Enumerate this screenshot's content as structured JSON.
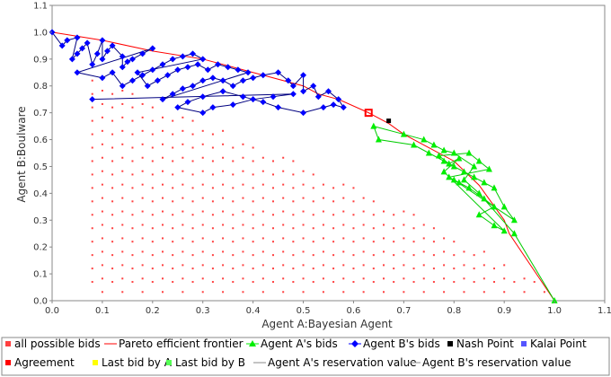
{
  "chart_data": {
    "type": "scatter",
    "xlabel": "Agent A:Bayesian Agent",
    "ylabel": "Agent B:Boulware",
    "xlim": [
      0.0,
      1.1
    ],
    "ylim": [
      0.0,
      1.1
    ],
    "xticks": [
      "0.0",
      "0.1",
      "0.2",
      "0.3",
      "0.4",
      "0.5",
      "0.6",
      "0.7",
      "0.8",
      "0.9",
      "1.0",
      "1.1"
    ],
    "yticks": [
      "0.0",
      "0.1",
      "0.2",
      "0.3",
      "0.4",
      "0.5",
      "0.6",
      "0.7",
      "0.8",
      "0.9",
      "1.0",
      "1.1"
    ],
    "grid": false,
    "legend_position": "bottom",
    "colors": {
      "possible_bids": "#ff4040",
      "pareto": "#ff0000",
      "agent_a": "#00ee00",
      "agent_b": "#0000ff",
      "nash": "#000000",
      "kalai": "#5555ff",
      "agreement": "#ff0000",
      "last_bid_a": "#ffff00",
      "last_bid_b": "#55ff55",
      "reservation": "#888888"
    },
    "legend": [
      {
        "label": "all possible bids",
        "marker": "square",
        "color": "#ff4040"
      },
      {
        "label": "Pareto efficient frontier",
        "marker": "line",
        "color": "#ff0000"
      },
      {
        "label": "Agent A's bids",
        "marker": "triangle",
        "color": "#00ee00"
      },
      {
        "label": "Agent B's bids",
        "marker": "diamond",
        "color": "#0000ff"
      },
      {
        "label": "Nash Point",
        "marker": "square",
        "color": "#000000"
      },
      {
        "label": "Kalai Point",
        "marker": "square",
        "color": "#5555ff"
      },
      {
        "label": "Agreement",
        "marker": "square",
        "color": "#ff0000"
      },
      {
        "label": "Last bid by A",
        "marker": "square",
        "color": "#ffff00"
      },
      {
        "label": "Last bid by B",
        "marker": "square",
        "color": "#55ff55"
      },
      {
        "label": "Agent A's reservation value",
        "marker": "line",
        "color": "#888888"
      },
      {
        "label": "Agent B's reservation value",
        "marker": "line",
        "color": "#888888"
      }
    ],
    "pareto": [
      [
        0.0,
        1.0
      ],
      [
        0.1,
        0.97
      ],
      [
        0.2,
        0.93
      ],
      [
        0.3,
        0.9
      ],
      [
        0.4,
        0.85
      ],
      [
        0.5,
        0.8
      ],
      [
        0.53,
        0.77
      ],
      [
        0.57,
        0.75
      ],
      [
        0.63,
        0.7
      ],
      [
        0.67,
        0.66
      ],
      [
        0.7,
        0.62
      ],
      [
        0.75,
        0.57
      ],
      [
        0.8,
        0.52
      ],
      [
        0.85,
        0.43
      ],
      [
        0.9,
        0.3
      ],
      [
        0.91,
        0.25
      ],
      [
        1.0,
        0.0
      ]
    ],
    "agent_b_bids": [
      [
        0.0,
        1.0
      ],
      [
        0.02,
        0.95
      ],
      [
        0.03,
        0.97
      ],
      [
        0.05,
        0.98
      ],
      [
        0.04,
        0.9
      ],
      [
        0.05,
        0.92
      ],
      [
        0.06,
        0.94
      ],
      [
        0.07,
        0.96
      ],
      [
        0.08,
        0.88
      ],
      [
        0.09,
        0.92
      ],
      [
        0.1,
        0.97
      ],
      [
        0.1,
        0.9
      ],
      [
        0.11,
        0.93
      ],
      [
        0.12,
        0.95
      ],
      [
        0.14,
        0.91
      ],
      [
        0.14,
        0.87
      ],
      [
        0.15,
        0.89
      ],
      [
        0.16,
        0.9
      ],
      [
        0.18,
        0.92
      ],
      [
        0.2,
        0.94
      ],
      [
        0.05,
        0.85
      ],
      [
        0.1,
        0.83
      ],
      [
        0.12,
        0.85
      ],
      [
        0.14,
        0.8
      ],
      [
        0.16,
        0.82
      ],
      [
        0.18,
        0.84
      ],
      [
        0.2,
        0.86
      ],
      [
        0.22,
        0.88
      ],
      [
        0.24,
        0.9
      ],
      [
        0.26,
        0.91
      ],
      [
        0.28,
        0.92
      ],
      [
        0.3,
        0.9
      ],
      [
        0.17,
        0.85
      ],
      [
        0.19,
        0.8
      ],
      [
        0.21,
        0.82
      ],
      [
        0.23,
        0.84
      ],
      [
        0.25,
        0.86
      ],
      [
        0.27,
        0.87
      ],
      [
        0.29,
        0.88
      ],
      [
        0.31,
        0.86
      ],
      [
        0.33,
        0.88
      ],
      [
        0.35,
        0.87
      ],
      [
        0.37,
        0.86
      ],
      [
        0.39,
        0.85
      ],
      [
        0.22,
        0.75
      ],
      [
        0.24,
        0.77
      ],
      [
        0.26,
        0.79
      ],
      [
        0.28,
        0.8
      ],
      [
        0.3,
        0.82
      ],
      [
        0.32,
        0.83
      ],
      [
        0.34,
        0.82
      ],
      [
        0.36,
        0.8
      ],
      [
        0.38,
        0.82
      ],
      [
        0.4,
        0.83
      ],
      [
        0.42,
        0.84
      ],
      [
        0.45,
        0.85
      ],
      [
        0.47,
        0.82
      ],
      [
        0.48,
        0.8
      ],
      [
        0.5,
        0.84
      ],
      [
        0.5,
        0.78
      ],
      [
        0.52,
        0.8
      ],
      [
        0.53,
        0.76
      ],
      [
        0.55,
        0.78
      ],
      [
        0.57,
        0.75
      ],
      [
        0.58,
        0.72
      ],
      [
        0.56,
        0.73
      ],
      [
        0.54,
        0.72
      ],
      [
        0.5,
        0.7
      ],
      [
        0.45,
        0.72
      ],
      [
        0.42,
        0.74
      ],
      [
        0.38,
        0.76
      ],
      [
        0.34,
        0.78
      ],
      [
        0.3,
        0.76
      ],
      [
        0.27,
        0.74
      ],
      [
        0.25,
        0.72
      ],
      [
        0.3,
        0.7
      ],
      [
        0.32,
        0.72
      ],
      [
        0.36,
        0.73
      ],
      [
        0.4,
        0.75
      ],
      [
        0.44,
        0.76
      ],
      [
        0.48,
        0.77
      ],
      [
        0.08,
        0.75
      ]
    ],
    "agent_a_bids": [
      [
        1.0,
        0.0
      ],
      [
        0.92,
        0.25
      ],
      [
        0.85,
        0.4
      ],
      [
        0.82,
        0.45
      ],
      [
        0.84,
        0.5
      ],
      [
        0.8,
        0.55
      ],
      [
        0.78,
        0.56
      ],
      [
        0.76,
        0.58
      ],
      [
        0.74,
        0.6
      ],
      [
        0.7,
        0.62
      ],
      [
        0.64,
        0.65
      ],
      [
        0.65,
        0.6
      ],
      [
        0.72,
        0.58
      ],
      [
        0.75,
        0.55
      ],
      [
        0.78,
        0.52
      ],
      [
        0.8,
        0.5
      ],
      [
        0.82,
        0.48
      ],
      [
        0.84,
        0.46
      ],
      [
        0.86,
        0.44
      ],
      [
        0.88,
        0.42
      ],
      [
        0.9,
        0.35
      ],
      [
        0.92,
        0.3
      ],
      [
        0.8,
        0.45
      ],
      [
        0.83,
        0.42
      ],
      [
        0.86,
        0.38
      ],
      [
        0.88,
        0.35
      ],
      [
        0.85,
        0.32
      ],
      [
        0.88,
        0.28
      ],
      [
        0.9,
        0.26
      ],
      [
        0.78,
        0.48
      ],
      [
        0.81,
        0.53
      ],
      [
        0.79,
        0.51
      ],
      [
        0.77,
        0.54
      ],
      [
        0.83,
        0.55
      ],
      [
        0.85,
        0.52
      ],
      [
        0.87,
        0.49
      ],
      [
        0.79,
        0.46
      ],
      [
        0.81,
        0.44
      ]
    ],
    "nash_point": [
      0.67,
      0.67
    ],
    "agreement": [
      0.63,
      0.7
    ]
  }
}
